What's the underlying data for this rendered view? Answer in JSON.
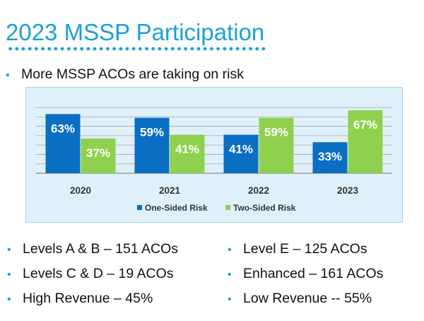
{
  "slide": {
    "title": "2023 MSSP Participation",
    "intro_bullet": "More MSSP ACOs are taking on risk",
    "bullets_left": [
      "Levels A & B – 151 ACOs",
      "Levels C & D – 19 ACOs",
      "High Revenue – 45%"
    ],
    "bullets_right": [
      "Level E – 125 ACOs",
      "Enhanced – 161 ACOs",
      "Low Revenue  -- 55%"
    ]
  },
  "colors": {
    "title": "#1ba0dc",
    "one_sided": "#0a6fc2",
    "two_sided": "#8fd14f",
    "chart_bg": "#dff0fa"
  },
  "chart_data": {
    "type": "bar",
    "categories": [
      "2020",
      "2021",
      "2022",
      "2023"
    ],
    "series": [
      {
        "name": "One-Sided Risk",
        "values": [
          63,
          59,
          41,
          33
        ],
        "labels": [
          "63%",
          "59%",
          "41%",
          "33%"
        ]
      },
      {
        "name": "Two-Sided Risk",
        "values": [
          37,
          41,
          59,
          67
        ],
        "labels": [
          "37%",
          "41%",
          "59%",
          "67%"
        ]
      }
    ],
    "ylim": [
      0,
      70
    ],
    "grid": true,
    "legend_position": "bottom"
  }
}
